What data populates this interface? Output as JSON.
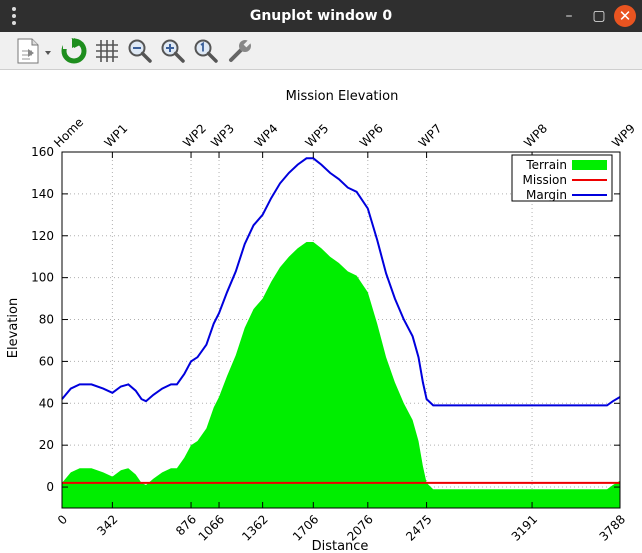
{
  "window": {
    "title": "Gnuplot window 0"
  },
  "toolbar": {
    "buttons": [
      "copy-to-clipboard",
      "replot",
      "grid",
      "zoom-out",
      "zoom-in",
      "zoom-reset",
      "settings"
    ]
  },
  "chart_data": {
    "type": "area",
    "title": "Mission Elevation",
    "xlabel": "Distance",
    "ylabel": "Elevation",
    "xlim": [
      0,
      3788
    ],
    "ylim": [
      -10,
      160
    ],
    "yticks": [
      0,
      20,
      40,
      60,
      80,
      100,
      120,
      140,
      160
    ],
    "xticks": [
      0,
      342,
      876,
      1066,
      1362,
      1706,
      2076,
      2475,
      3191,
      3788
    ],
    "waypoints": [
      {
        "label": "Home",
        "x": 0
      },
      {
        "label": "WP1",
        "x": 342
      },
      {
        "label": "WP2",
        "x": 876
      },
      {
        "label": "WP3",
        "x": 1066
      },
      {
        "label": "WP4",
        "x": 1362
      },
      {
        "label": "WP5",
        "x": 1706
      },
      {
        "label": "WP6",
        "x": 2076
      },
      {
        "label": "WP7",
        "x": 2475
      },
      {
        "label": "WP8",
        "x": 3191
      },
      {
        "label": "WP9",
        "x": 3788
      }
    ],
    "grid": true,
    "legend_position": "top-right",
    "series": [
      {
        "name": "Terrain",
        "style": "filled",
        "color": "#00ee00",
        "points": [
          [
            0,
            2
          ],
          [
            60,
            7
          ],
          [
            120,
            9
          ],
          [
            200,
            9
          ],
          [
            280,
            7
          ],
          [
            342,
            5
          ],
          [
            400,
            8
          ],
          [
            450,
            9
          ],
          [
            500,
            6
          ],
          [
            540,
            2
          ],
          [
            570,
            1
          ],
          [
            620,
            4
          ],
          [
            680,
            7
          ],
          [
            740,
            9
          ],
          [
            780,
            9
          ],
          [
            830,
            14
          ],
          [
            876,
            20
          ],
          [
            920,
            22
          ],
          [
            980,
            28
          ],
          [
            1030,
            38
          ],
          [
            1066,
            43
          ],
          [
            1120,
            53
          ],
          [
            1180,
            63
          ],
          [
            1240,
            76
          ],
          [
            1300,
            85
          ],
          [
            1362,
            90
          ],
          [
            1420,
            98
          ],
          [
            1480,
            105
          ],
          [
            1540,
            110
          ],
          [
            1600,
            114
          ],
          [
            1660,
            117
          ],
          [
            1706,
            117
          ],
          [
            1760,
            114
          ],
          [
            1820,
            110
          ],
          [
            1880,
            107
          ],
          [
            1940,
            103
          ],
          [
            2000,
            101
          ],
          [
            2076,
            93
          ],
          [
            2140,
            78
          ],
          [
            2200,
            62
          ],
          [
            2260,
            50
          ],
          [
            2320,
            40
          ],
          [
            2380,
            32
          ],
          [
            2420,
            22
          ],
          [
            2450,
            10
          ],
          [
            2475,
            2
          ],
          [
            2520,
            -1
          ],
          [
            2600,
            -1
          ],
          [
            3191,
            -1
          ],
          [
            3700,
            -1
          ],
          [
            3740,
            1
          ],
          [
            3788,
            3
          ]
        ]
      },
      {
        "name": "Mission",
        "style": "line",
        "color": "#ee0000",
        "points": [
          [
            0,
            2
          ],
          [
            3788,
            2
          ]
        ]
      },
      {
        "name": "Margin",
        "style": "line",
        "color": "#0000dd",
        "points": [
          [
            0,
            42
          ],
          [
            60,
            47
          ],
          [
            120,
            49
          ],
          [
            200,
            49
          ],
          [
            280,
            47
          ],
          [
            342,
            45
          ],
          [
            400,
            48
          ],
          [
            450,
            49
          ],
          [
            500,
            46
          ],
          [
            540,
            42
          ],
          [
            570,
            41
          ],
          [
            620,
            44
          ],
          [
            680,
            47
          ],
          [
            740,
            49
          ],
          [
            780,
            49
          ],
          [
            830,
            54
          ],
          [
            876,
            60
          ],
          [
            920,
            62
          ],
          [
            980,
            68
          ],
          [
            1030,
            78
          ],
          [
            1066,
            83
          ],
          [
            1120,
            93
          ],
          [
            1180,
            103
          ],
          [
            1240,
            116
          ],
          [
            1300,
            125
          ],
          [
            1362,
            130
          ],
          [
            1420,
            138
          ],
          [
            1480,
            145
          ],
          [
            1540,
            150
          ],
          [
            1600,
            154
          ],
          [
            1660,
            157
          ],
          [
            1706,
            157
          ],
          [
            1760,
            154
          ],
          [
            1820,
            150
          ],
          [
            1880,
            147
          ],
          [
            1940,
            143
          ],
          [
            2000,
            141
          ],
          [
            2076,
            133
          ],
          [
            2140,
            118
          ],
          [
            2200,
            102
          ],
          [
            2260,
            90
          ],
          [
            2320,
            80
          ],
          [
            2380,
            72
          ],
          [
            2420,
            62
          ],
          [
            2450,
            50
          ],
          [
            2475,
            42
          ],
          [
            2520,
            39
          ],
          [
            2600,
            39
          ],
          [
            3191,
            39
          ],
          [
            3700,
            39
          ],
          [
            3740,
            41
          ],
          [
            3788,
            43
          ]
        ]
      }
    ]
  }
}
